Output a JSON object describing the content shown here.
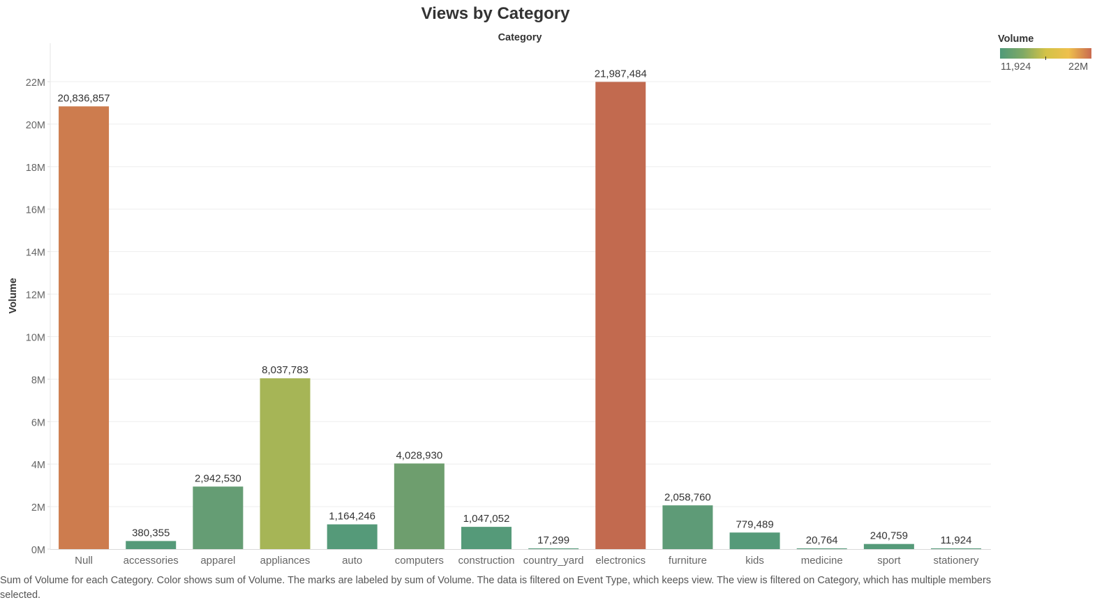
{
  "chart_data": {
    "type": "bar",
    "title": "Views by Category",
    "column_header": "Category",
    "ylabel": "Volume",
    "ylim": [
      0,
      22000000
    ],
    "y_ticks": [
      {
        "value": 0,
        "label": "0M"
      },
      {
        "value": 2000000,
        "label": "2M"
      },
      {
        "value": 4000000,
        "label": "4M"
      },
      {
        "value": 6000000,
        "label": "6M"
      },
      {
        "value": 8000000,
        "label": "8M"
      },
      {
        "value": 10000000,
        "label": "10M"
      },
      {
        "value": 12000000,
        "label": "12M"
      },
      {
        "value": 14000000,
        "label": "14M"
      },
      {
        "value": 16000000,
        "label": "16M"
      },
      {
        "value": 18000000,
        "label": "18M"
      },
      {
        "value": 20000000,
        "label": "20M"
      },
      {
        "value": 22000000,
        "label": "22M"
      }
    ],
    "grid": true,
    "categories": [
      "Null",
      "accessories",
      "apparel",
      "appliances",
      "auto",
      "computers",
      "construction",
      "country_yard",
      "electronics",
      "furniture",
      "kids",
      "medicine",
      "sport",
      "stationery"
    ],
    "values": [
      20836857,
      380355,
      2942530,
      8037783,
      1164246,
      4028930,
      1047052,
      17299,
      21987484,
      2058760,
      779489,
      20764,
      240759,
      11924
    ],
    "value_labels": [
      "20,836,857",
      "380,355",
      "2,942,530",
      "8,037,783",
      "1,164,246",
      "4,028,930",
      "1,047,052",
      "17,299",
      "21,987,484",
      "2,058,760",
      "779,489",
      "20,764",
      "240,759",
      "11,924"
    ],
    "bar_colors": [
      "#cd7c4e",
      "#559a79",
      "#659d74",
      "#a6b556",
      "#559a79",
      "#6e9e6e",
      "#559a79",
      "#529878",
      "#c26a4f",
      "#5e9b77",
      "#559a79",
      "#529878",
      "#559a79",
      "#529878"
    ],
    "color_legend": {
      "title": "Volume",
      "min_label": "11,924",
      "max_label": "22M",
      "colors": [
        "#4f9a7a",
        "#7fa965",
        "#d3c247",
        "#eec04d",
        "#c96a50"
      ]
    },
    "legend_position": "top-right",
    "caption": "Sum of Volume for each Category.  Color shows sum of Volume.  The marks are labeled by sum of Volume. The data is filtered on Event Type, which keeps view. The view is filtered on Category, which has multiple members selected."
  }
}
